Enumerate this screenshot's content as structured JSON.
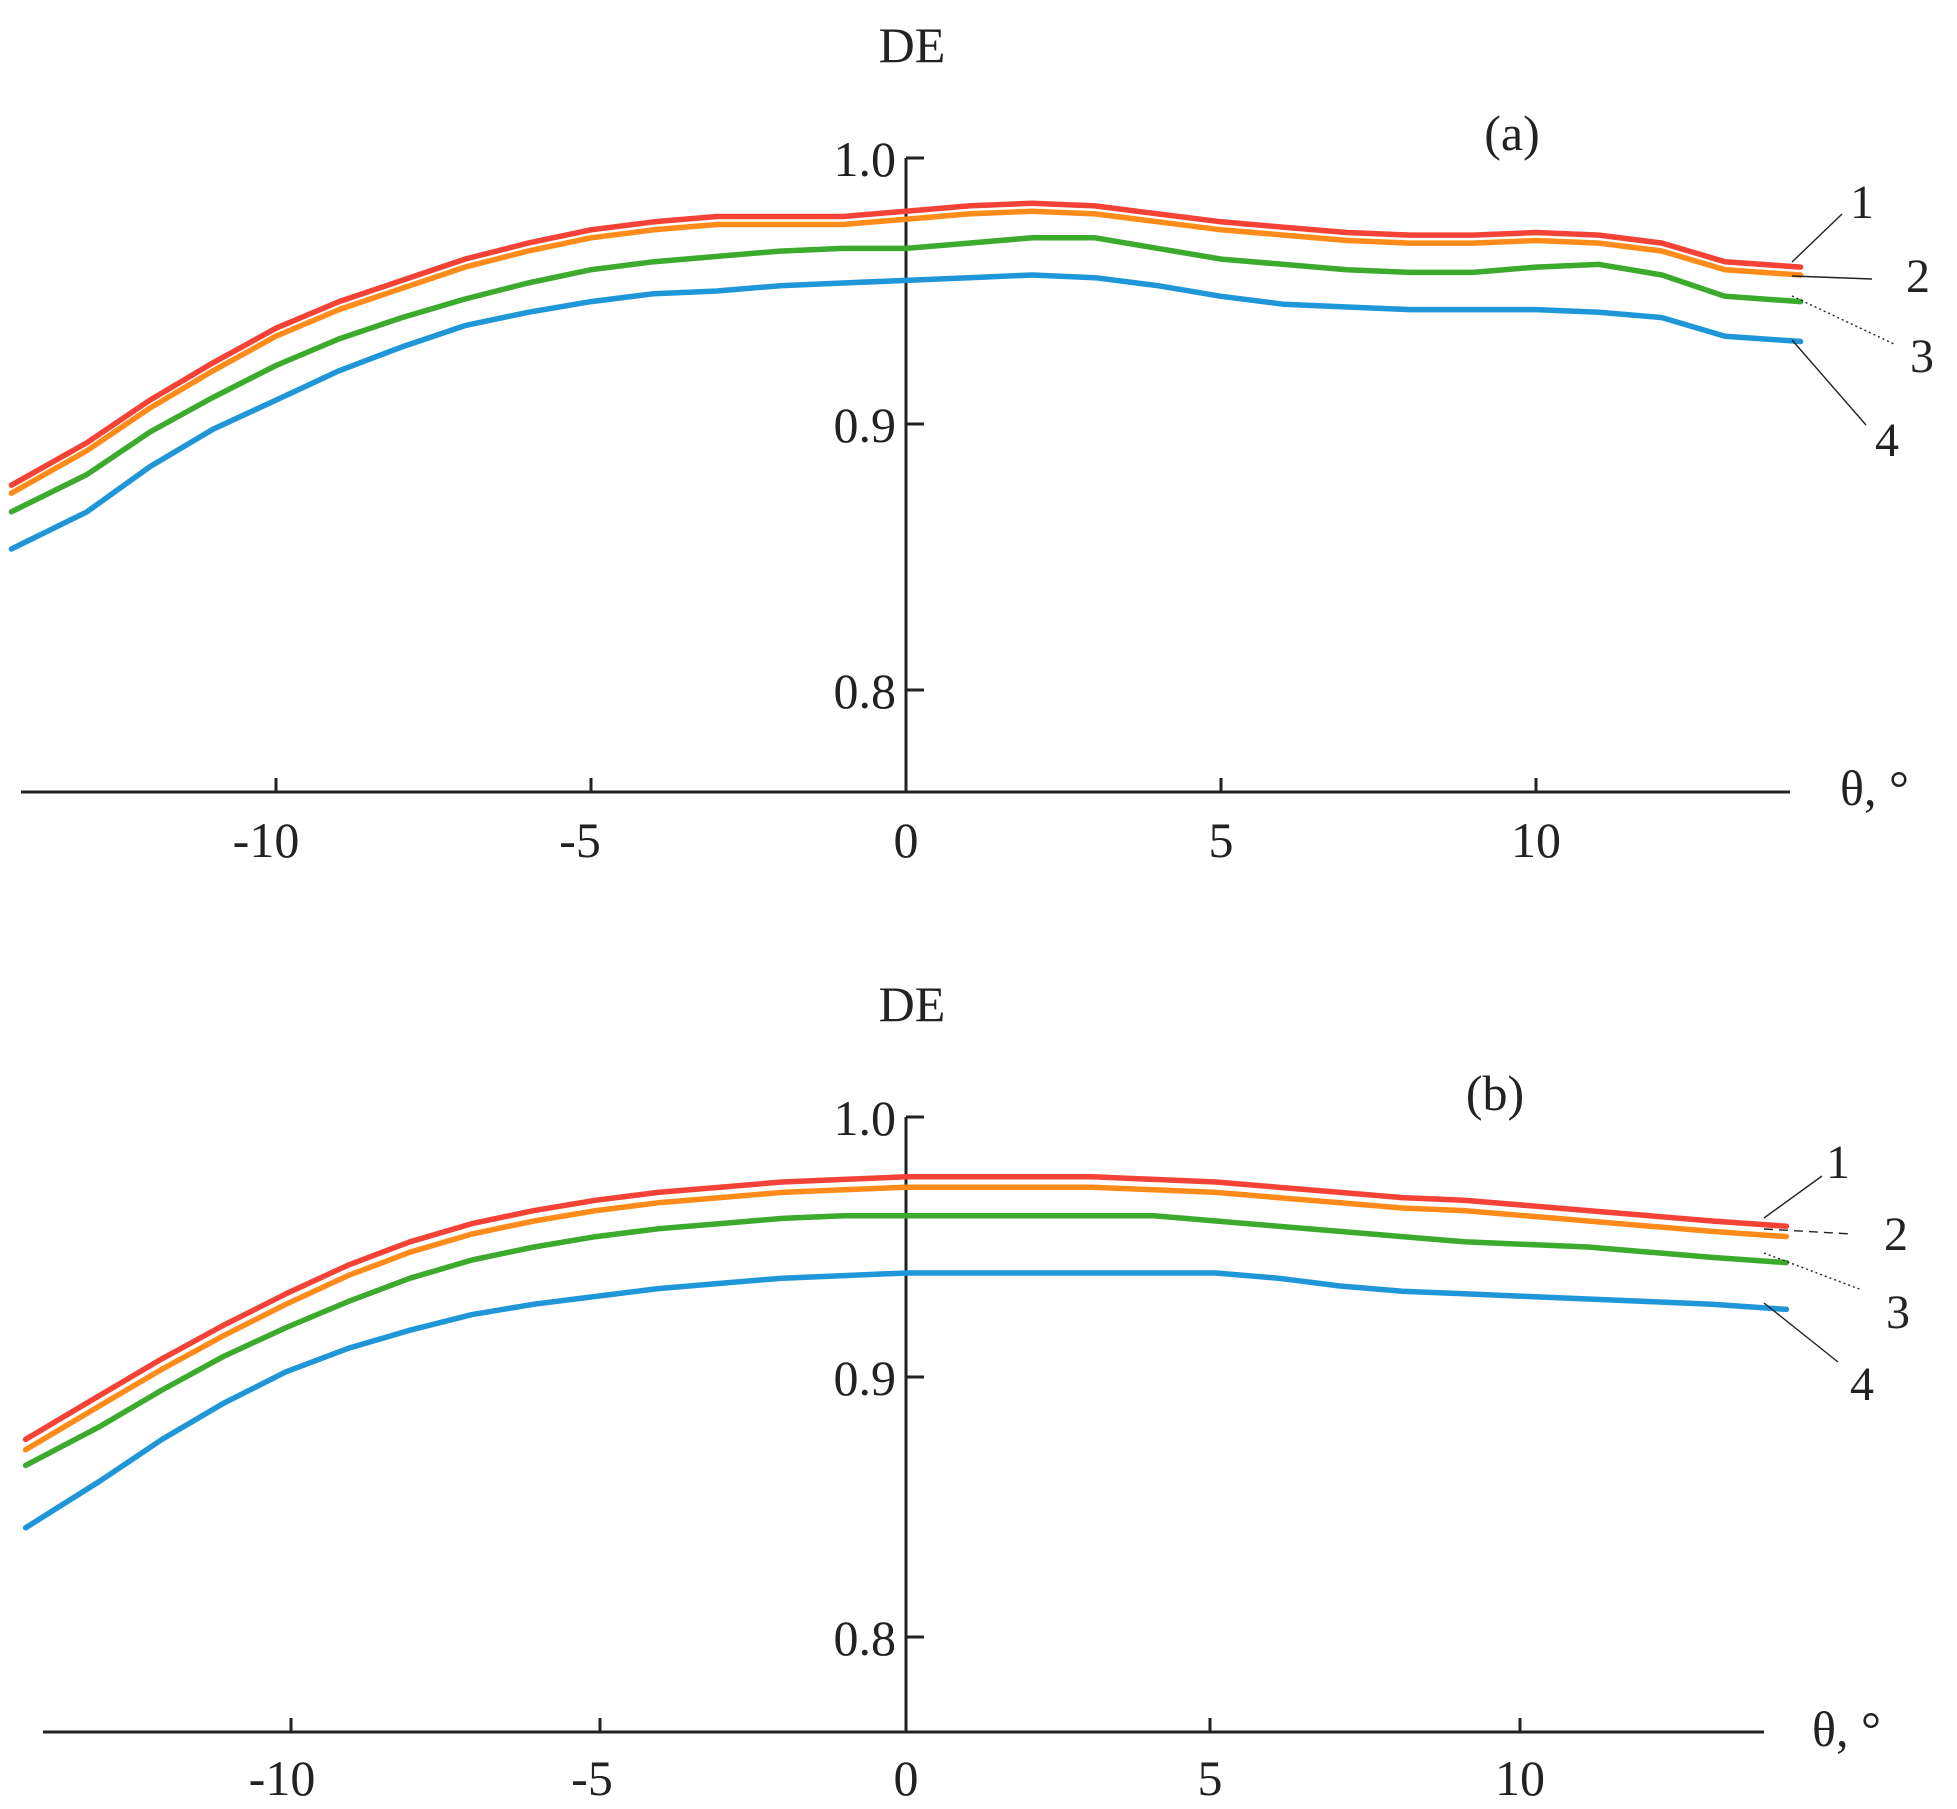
{
  "figure": {
    "title": "",
    "series_colors": {
      "1": "#f44336",
      "2": "#ff8c1a",
      "3": "#3caa2c",
      "4": "#1e96d8"
    }
  },
  "chart_data": [
    {
      "type": "line",
      "panel_label": "(a)",
      "ylabel": "DE",
      "xlabel": "θ, °",
      "xlim": [
        -14.2,
        14.2
      ],
      "ylim": [
        0.765,
        1.0
      ],
      "xticks": [
        -10,
        -5,
        0,
        5,
        10
      ],
      "xtick_labels": [
        "-10",
        "-5",
        "0",
        "5",
        "10"
      ],
      "yticks": [
        0.8,
        0.9,
        1.0
      ],
      "ytick_labels": [
        "0.8",
        "0.9",
        "1.0"
      ],
      "grid": false,
      "legend": "curve number labels at right end",
      "series": [
        {
          "name": "1",
          "color": "#f44336",
          "x": [
            -14.2,
            -13,
            -12,
            -11,
            -10,
            -9,
            -8,
            -7,
            -6,
            -5,
            -4,
            -3,
            -2,
            -1,
            0,
            1,
            2,
            3,
            4,
            5,
            6,
            7,
            8,
            9,
            10,
            11,
            12,
            13,
            14.2
          ],
          "y": [
            0.877,
            0.893,
            0.909,
            0.923,
            0.936,
            0.946,
            0.954,
            0.962,
            0.968,
            0.973,
            0.976,
            0.978,
            0.978,
            0.978,
            0.98,
            0.982,
            0.983,
            0.982,
            0.979,
            0.976,
            0.974,
            0.972,
            0.971,
            0.971,
            0.972,
            0.971,
            0.968,
            0.961,
            0.959
          ]
        },
        {
          "name": "2",
          "color": "#ff8c1a",
          "x": [
            -14.2,
            -13,
            -12,
            -11,
            -10,
            -9,
            -8,
            -7,
            -6,
            -5,
            -4,
            -3,
            -2,
            -1,
            0,
            1,
            2,
            3,
            4,
            5,
            6,
            7,
            8,
            9,
            10,
            11,
            12,
            13,
            14.2
          ],
          "y": [
            0.874,
            0.89,
            0.906,
            0.92,
            0.933,
            0.943,
            0.951,
            0.959,
            0.965,
            0.97,
            0.973,
            0.975,
            0.975,
            0.975,
            0.977,
            0.979,
            0.98,
            0.979,
            0.976,
            0.973,
            0.971,
            0.969,
            0.968,
            0.968,
            0.969,
            0.968,
            0.965,
            0.958,
            0.956
          ]
        },
        {
          "name": "3",
          "color": "#3caa2c",
          "x": [
            -14.2,
            -13,
            -12,
            -11,
            -10,
            -9,
            -8,
            -7,
            -6,
            -5,
            -4,
            -3,
            -2,
            -1,
            0,
            1,
            2,
            3,
            4,
            5,
            6,
            7,
            8,
            9,
            10,
            11,
            12,
            13,
            14.2
          ],
          "y": [
            0.867,
            0.881,
            0.897,
            0.91,
            0.922,
            0.932,
            0.94,
            0.947,
            0.953,
            0.958,
            0.961,
            0.963,
            0.965,
            0.966,
            0.966,
            0.968,
            0.97,
            0.97,
            0.966,
            0.962,
            0.96,
            0.958,
            0.957,
            0.957,
            0.959,
            0.96,
            0.956,
            0.948,
            0.946
          ]
        },
        {
          "name": "4",
          "color": "#1e96d8",
          "x": [
            -14.2,
            -13,
            -12,
            -11,
            -10,
            -9,
            -8,
            -7,
            -6,
            -5,
            -4,
            -3,
            -2,
            -1,
            0,
            1,
            2,
            3,
            4,
            5,
            6,
            7,
            8,
            9,
            10,
            11,
            12,
            13,
            14.2
          ],
          "y": [
            0.853,
            0.867,
            0.884,
            0.898,
            0.909,
            0.92,
            0.929,
            0.937,
            0.942,
            0.946,
            0.949,
            0.95,
            0.952,
            0.953,
            0.954,
            0.955,
            0.956,
            0.955,
            0.952,
            0.948,
            0.945,
            0.944,
            0.943,
            0.943,
            0.943,
            0.942,
            0.94,
            0.933,
            0.931
          ]
        }
      ]
    },
    {
      "type": "line",
      "panel_label": "(b)",
      "ylabel": "DE",
      "xlabel": "θ, °",
      "xlim": [
        -14.2,
        14.2
      ],
      "ylim": [
        0.765,
        1.0
      ],
      "xticks": [
        -10,
        -5,
        0,
        5,
        10
      ],
      "xtick_labels": [
        "-10",
        "-5",
        "0",
        "5",
        "10"
      ],
      "yticks": [
        0.8,
        0.9,
        1.0
      ],
      "ytick_labels": [
        "0.8",
        "0.9",
        "1.0"
      ],
      "grid": false,
      "legend": "curve number labels at right end",
      "series": [
        {
          "name": "1",
          "color": "#f44336",
          "x": [
            -14.2,
            -13,
            -12,
            -11,
            -10,
            -9,
            -8,
            -7,
            -6,
            -5,
            -4,
            -3,
            -2,
            -1,
            0,
            1,
            2,
            3,
            4,
            5,
            6,
            7,
            8,
            9,
            10,
            11,
            12,
            13,
            14.2
          ],
          "y": [
            0.876,
            0.893,
            0.907,
            0.92,
            0.932,
            0.943,
            0.952,
            0.959,
            0.964,
            0.968,
            0.971,
            0.973,
            0.975,
            0.976,
            0.977,
            0.977,
            0.977,
            0.977,
            0.976,
            0.975,
            0.973,
            0.971,
            0.969,
            0.968,
            0.966,
            0.964,
            0.962,
            0.96,
            0.958
          ]
        },
        {
          "name": "2",
          "color": "#ff8c1a",
          "x": [
            -14.2,
            -13,
            -12,
            -11,
            -10,
            -9,
            -8,
            -7,
            -6,
            -5,
            -4,
            -3,
            -2,
            -1,
            0,
            1,
            2,
            3,
            4,
            5,
            6,
            7,
            8,
            9,
            10,
            11,
            12,
            13,
            14.2
          ],
          "y": [
            0.872,
            0.889,
            0.903,
            0.916,
            0.928,
            0.939,
            0.948,
            0.955,
            0.96,
            0.964,
            0.967,
            0.969,
            0.971,
            0.972,
            0.973,
            0.973,
            0.973,
            0.973,
            0.972,
            0.971,
            0.969,
            0.967,
            0.965,
            0.964,
            0.962,
            0.96,
            0.958,
            0.956,
            0.954
          ]
        },
        {
          "name": "3",
          "color": "#3caa2c",
          "x": [
            -14.2,
            -13,
            -12,
            -11,
            -10,
            -9,
            -8,
            -7,
            -6,
            -5,
            -4,
            -3,
            -2,
            -1,
            0,
            1,
            2,
            3,
            4,
            5,
            6,
            7,
            8,
            9,
            10,
            11,
            12,
            13,
            14.2
          ],
          "y": [
            0.866,
            0.881,
            0.895,
            0.908,
            0.919,
            0.929,
            0.938,
            0.945,
            0.95,
            0.954,
            0.957,
            0.959,
            0.961,
            0.962,
            0.962,
            0.962,
            0.962,
            0.962,
            0.962,
            0.96,
            0.958,
            0.956,
            0.954,
            0.952,
            0.951,
            0.95,
            0.948,
            0.946,
            0.944
          ]
        },
        {
          "name": "4",
          "color": "#1e96d8",
          "x": [
            -14.2,
            -13,
            -12,
            -11,
            -10,
            -9,
            -8,
            -7,
            -6,
            -5,
            -4,
            -3,
            -2,
            -1,
            0,
            1,
            2,
            3,
            4,
            5,
            6,
            7,
            8,
            9,
            10,
            11,
            12,
            13,
            14.2
          ],
          "y": [
            0.842,
            0.86,
            0.876,
            0.89,
            0.902,
            0.911,
            0.918,
            0.924,
            0.928,
            0.931,
            0.934,
            0.936,
            0.938,
            0.939,
            0.94,
            0.94,
            0.94,
            0.94,
            0.94,
            0.94,
            0.938,
            0.935,
            0.933,
            0.932,
            0.931,
            0.93,
            0.929,
            0.928,
            0.926
          ]
        }
      ]
    }
  ]
}
